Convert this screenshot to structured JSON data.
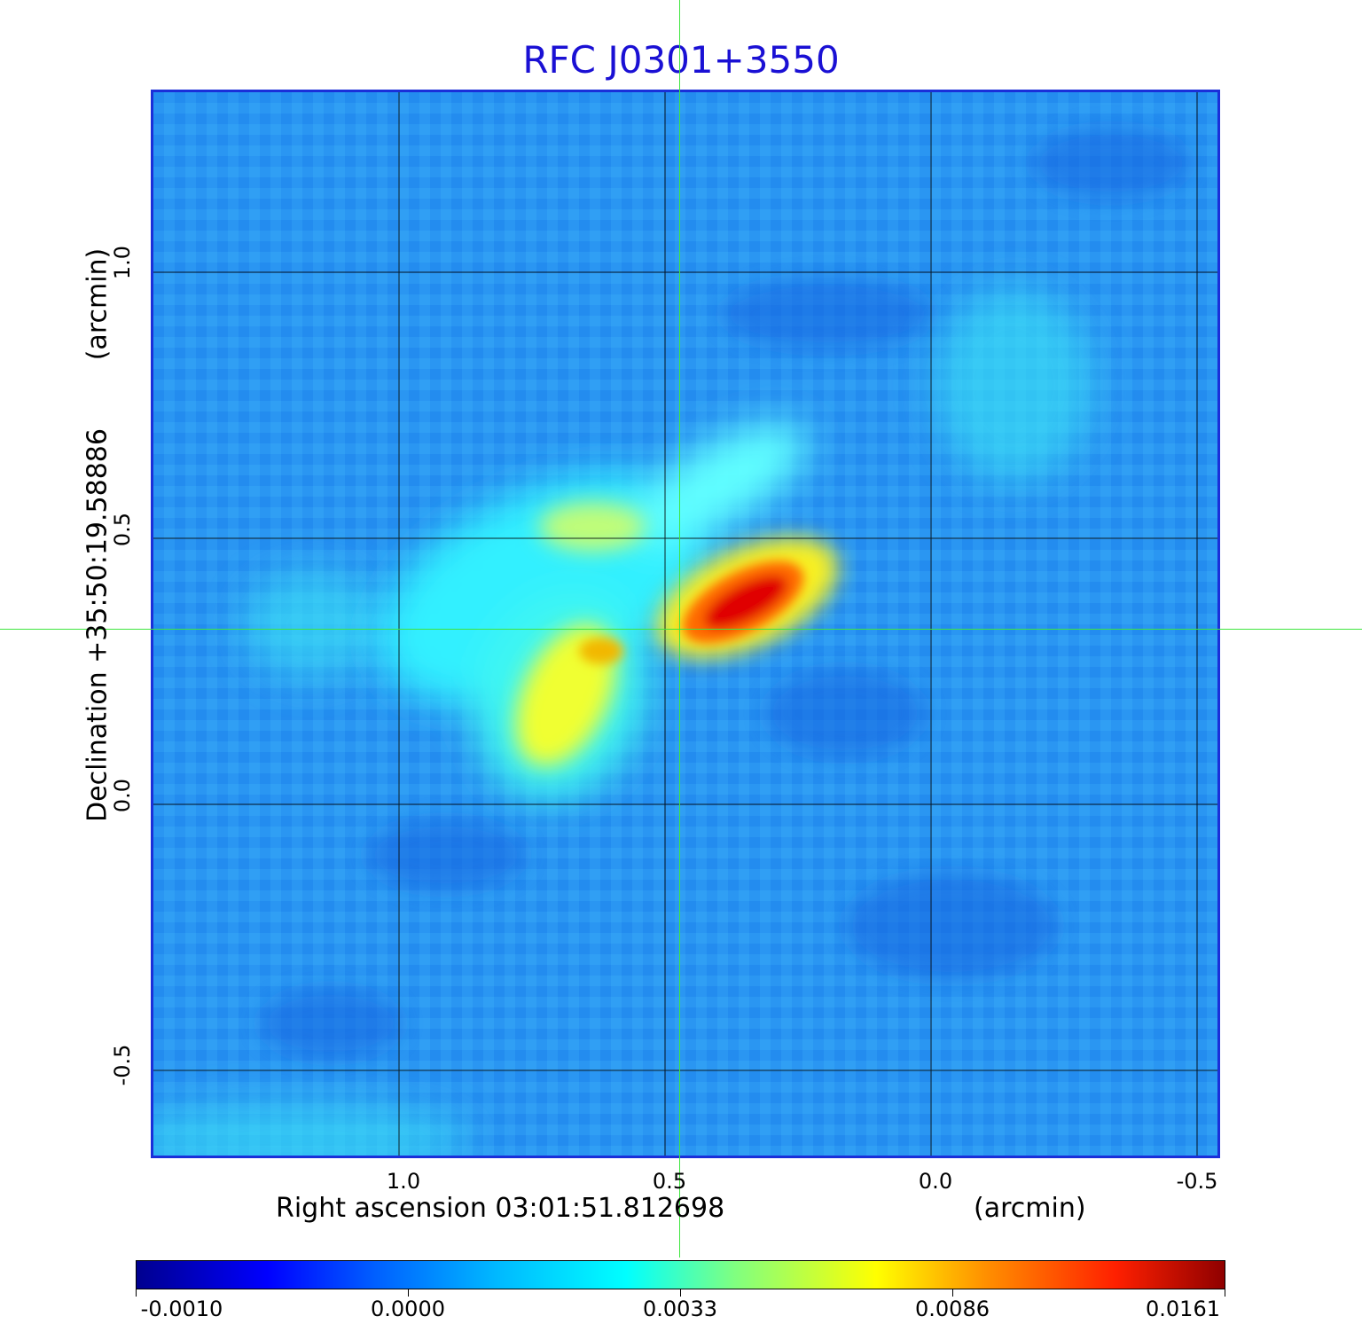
{
  "title": "RFC J0301+3550",
  "axes": {
    "x_label": "Right ascension  03:01:51.812698",
    "x_unit": "(arcmin)",
    "y_label": "Declination  +35:50:19.58886",
    "y_unit": "(arcmin)",
    "x_ticks": [
      "1.0",
      "0.5",
      "0.0",
      "-0.5"
    ],
    "y_ticks": [
      "1.0",
      "0.5",
      "0.0",
      "-0.5"
    ]
  },
  "colorbar": {
    "colormap": "jet",
    "tick_labels": [
      "-0.0010",
      "0.0000",
      "0.0033",
      "0.0086",
      "0.0161"
    ]
  },
  "colors": {
    "title": "#1a10d4",
    "frame": "#1a2fd9",
    "crosshair": "#3ee63e",
    "background_field": "#1f8ff0"
  }
}
